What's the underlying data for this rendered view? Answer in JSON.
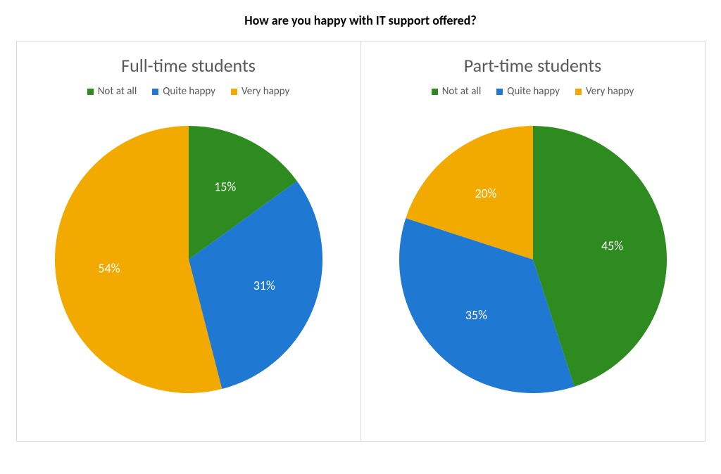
{
  "title": "How are you happy with IT support offered?",
  "title_fontsize": 18,
  "title_color": "#000000",
  "panel_border_color": "#d9d9d9",
  "background_color": "#ffffff",
  "legend_font_color": "#595959",
  "panel_title_color": "#595959",
  "panel_title_fontsize": 26,
  "legend_fontsize": 15,
  "slice_label_fontsize": 18,
  "slice_label_color": "#ffffff",
  "charts": [
    {
      "title": "Full-time students",
      "type": "pie",
      "radius": 190,
      "slices": [
        {
          "label": "Not at all",
          "value": 15,
          "display": "15%",
          "color": "#2e8b20"
        },
        {
          "label": "Quite happy",
          "value": 31,
          "display": "31%",
          "color": "#1f78d1"
        },
        {
          "label": "Very happy",
          "value": 54,
          "display": "54%",
          "color": "#f2a900"
        }
      ]
    },
    {
      "title": "Part-time students",
      "type": "pie",
      "radius": 190,
      "slices": [
        {
          "label": "Not at all",
          "value": 45,
          "display": "45%",
          "color": "#2e8b20"
        },
        {
          "label": "Quite happy",
          "value": 35,
          "display": "35%",
          "color": "#1f78d1"
        },
        {
          "label": "Very happy",
          "value": 20,
          "display": "20%",
          "color": "#f2a900"
        }
      ]
    }
  ]
}
